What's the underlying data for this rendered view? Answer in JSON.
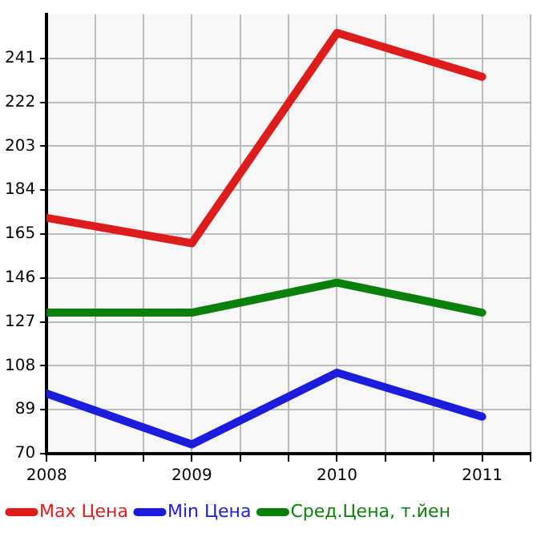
{
  "chart_data": {
    "type": "line",
    "x": [
      2008,
      2009,
      2010,
      2011
    ],
    "series": [
      {
        "name": "Max Цена",
        "color": "#dd1c1c",
        "values": [
          172,
          161,
          252,
          233
        ]
      },
      {
        "name": "Min Цена",
        "color": "#1c1cdd",
        "values": [
          96,
          74,
          105,
          86
        ]
      },
      {
        "name": "Сред.Цена, т.йен",
        "color": "#0a7f0a",
        "values": [
          131,
          131,
          144,
          131
        ]
      }
    ],
    "xlim": [
      2008,
      2011.3333
    ],
    "xticks": [
      2008,
      {
        "value": 2008.3333,
        "label": null
      },
      {
        "value": 2008.6667,
        "label": null
      },
      2009,
      {
        "value": 2009.3333,
        "label": null
      },
      {
        "value": 2009.6667,
        "label": null
      },
      2010,
      {
        "value": 2010.3333,
        "label": null
      },
      {
        "value": 2010.6667,
        "label": null
      },
      2011,
      {
        "value": 2011.3333,
        "label": null
      }
    ],
    "ylim": [
      70,
      260
    ],
    "yticks": [
      70,
      89,
      108,
      127,
      146,
      165,
      184,
      203,
      222,
      241
    ],
    "grid": true,
    "legend": "bottom",
    "marker": "none",
    "line_style": "solid"
  }
}
